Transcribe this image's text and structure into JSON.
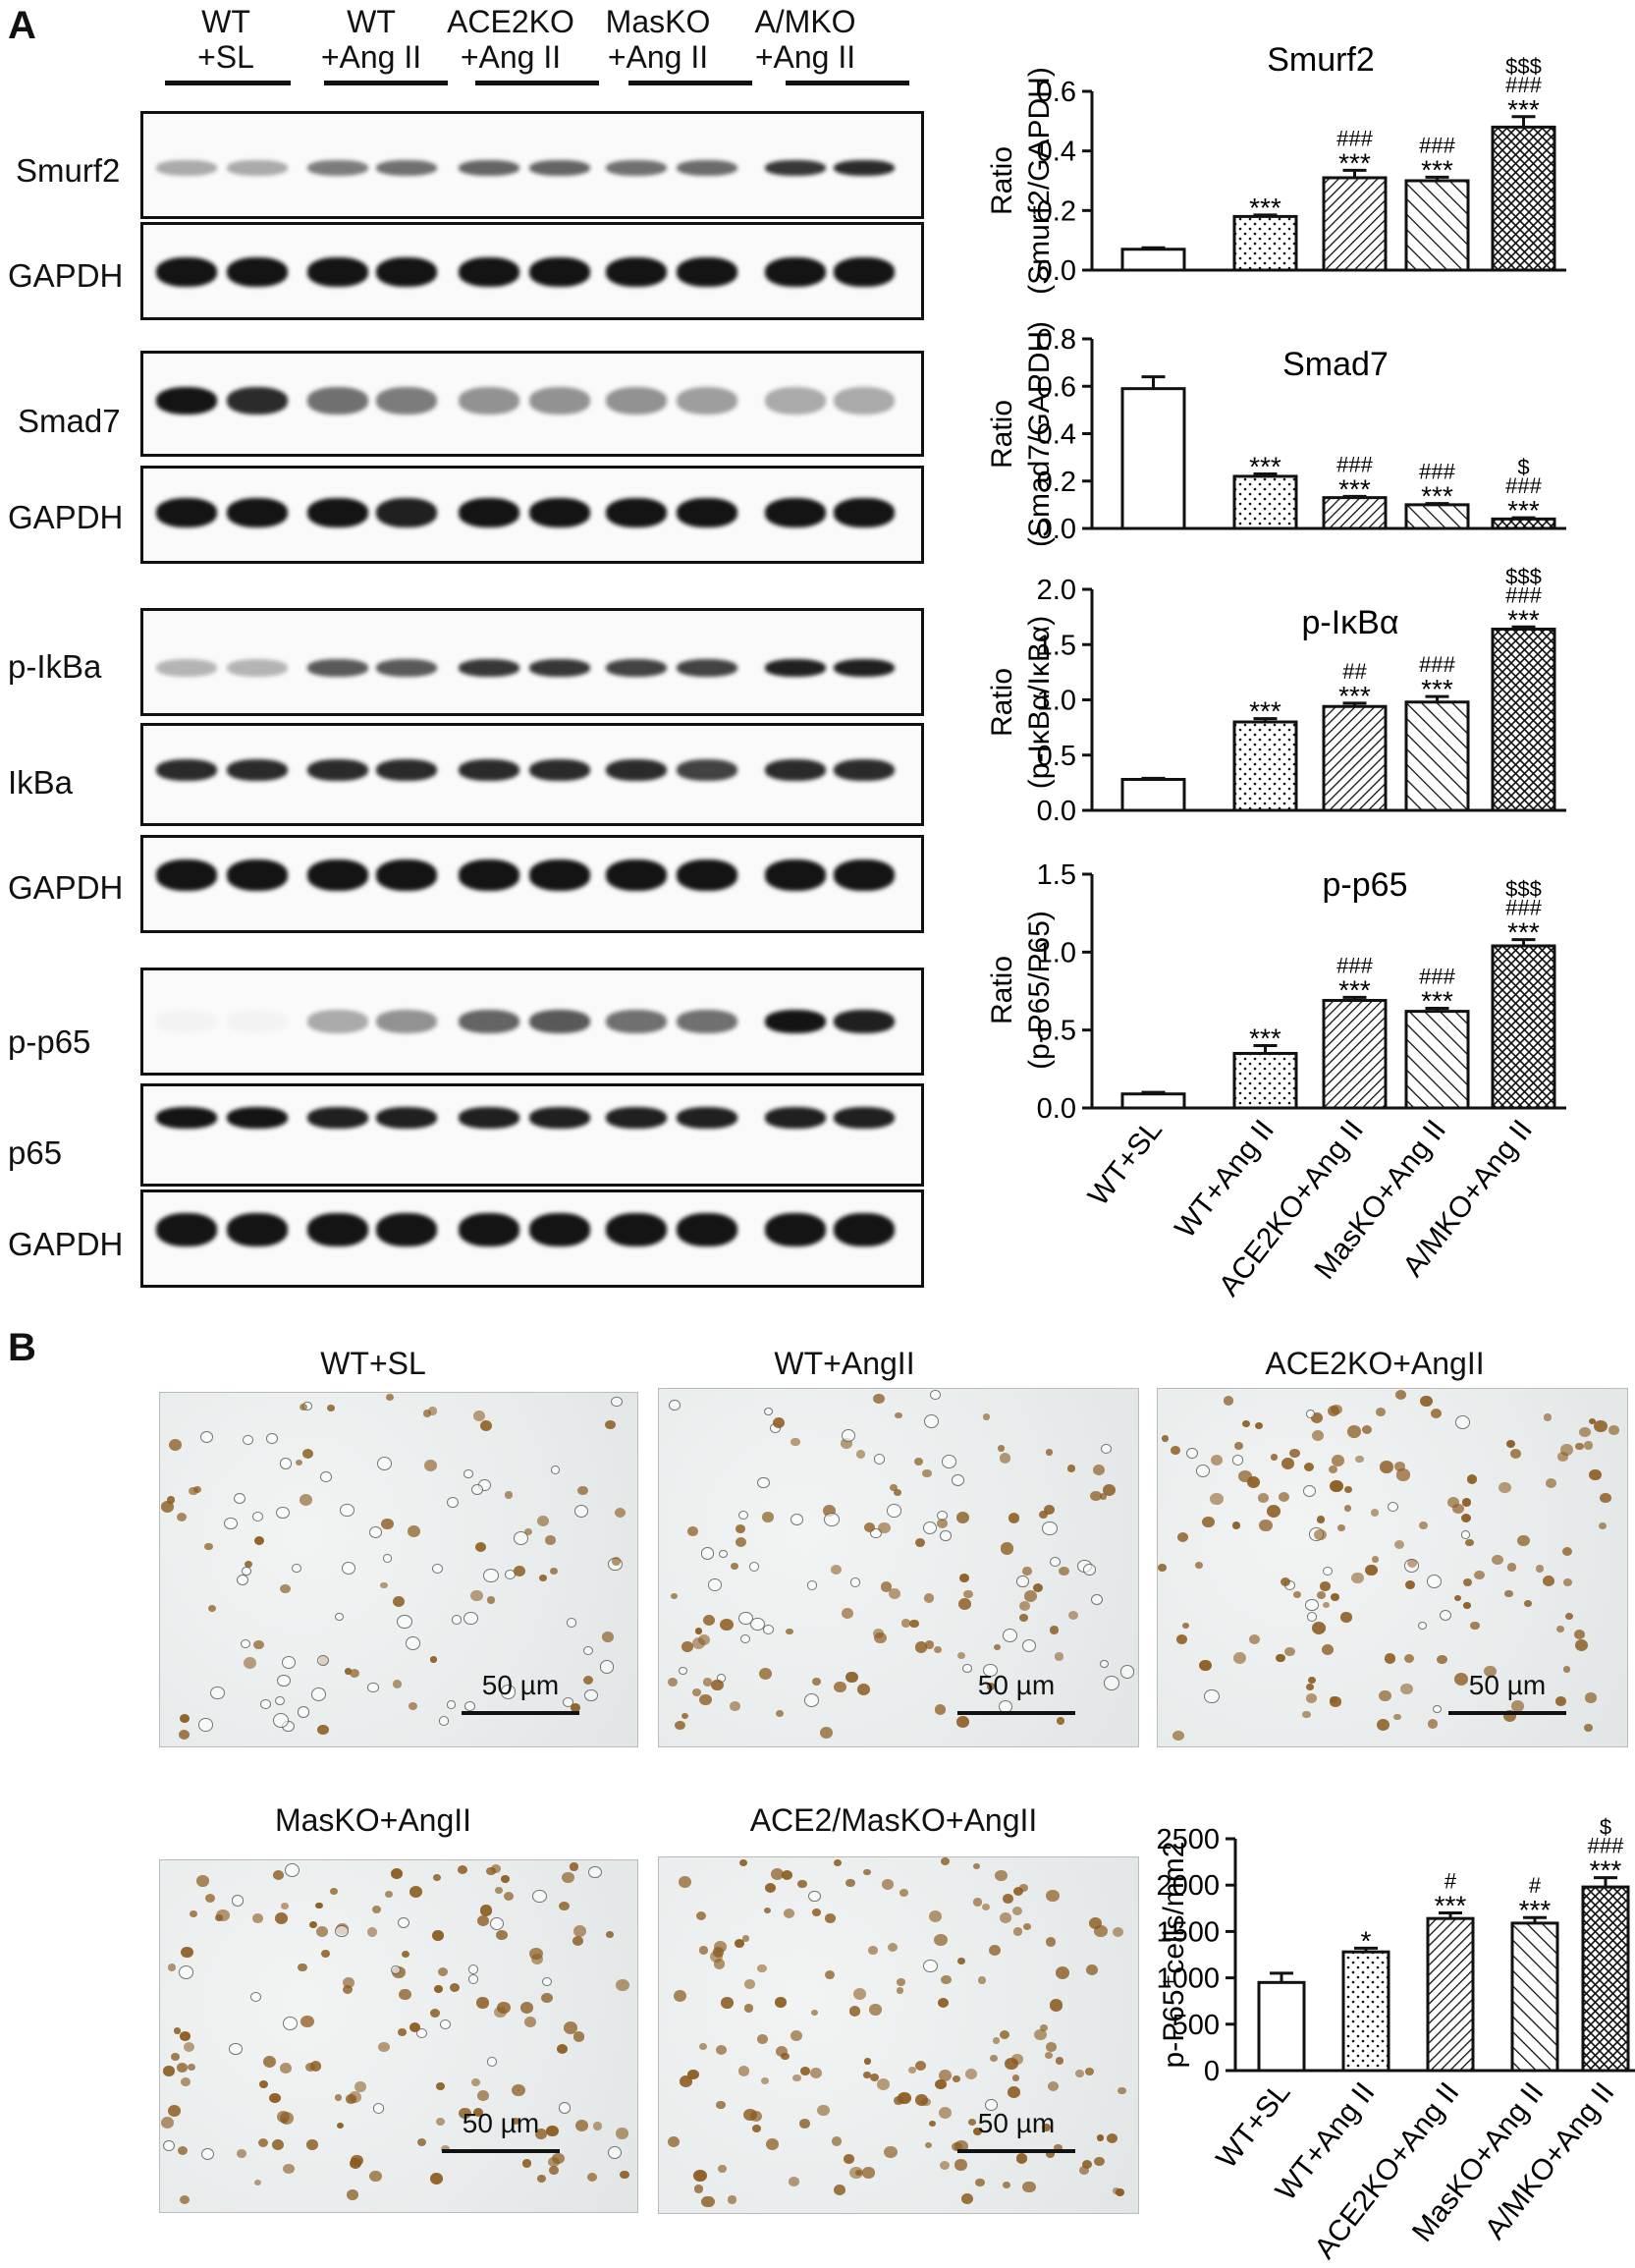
{
  "panel_a": {
    "letter": "A",
    "lane_groups": [
      {
        "line1": "WT",
        "line2": "+SL"
      },
      {
        "line1": "WT",
        "line2": "+Ang II"
      },
      {
        "line1": "ACE2KO",
        "line2": "+Ang II"
      },
      {
        "line1": "MasKO",
        "line2": "+Ang II"
      },
      {
        "line1": "A/MKO",
        "line2": "+Ang II"
      }
    ],
    "blot_labels": [
      "Smurf2",
      "GAPDH",
      "Smad7",
      "GAPDH",
      "p-IkBa",
      "IkBa",
      "GAPDH",
      "p-p65",
      "p65",
      "GAPDH"
    ]
  },
  "panel_b": {
    "letter": "B",
    "micrographs": [
      {
        "title": "WT+SL",
        "scale": "50 µm"
      },
      {
        "title": "WT+AngII",
        "scale": "50 µm"
      },
      {
        "title": "ACE2KO+AngII",
        "scale": "50 µm"
      },
      {
        "title": "MasKO+AngII",
        "scale": "50 µm"
      },
      {
        "title": "ACE2/MasKO+AngII",
        "scale": "50 µm"
      }
    ]
  },
  "colors": {
    "ink": "#111111",
    "band": "#1a1a1a",
    "stain": "#8a5a1e"
  },
  "chart_data": [
    {
      "type": "bar",
      "title": "Smurf2",
      "ylabel_line1": "Ratio",
      "ylabel_line2": "(Smurf2/GAPDH)",
      "ylim": [
        0,
        0.6
      ],
      "yticks": [
        "0.0",
        "0.2",
        "0.4",
        "0.6"
      ],
      "categories": [
        "WT+SL",
        "WT+Ang II",
        "ACE2KO+Ang II",
        "MasKO+Ang II",
        "A/MKO+Ang II"
      ],
      "values": [
        0.07,
        0.18,
        0.31,
        0.3,
        0.48
      ],
      "errors": [
        0.005,
        0.005,
        0.025,
        0.012,
        0.035
      ],
      "annotations": [
        [],
        [
          "***"
        ],
        [
          "###",
          "***"
        ],
        [
          "###",
          "***"
        ],
        [
          "$$$",
          "###",
          "***"
        ]
      ]
    },
    {
      "type": "bar",
      "title": "Smad7",
      "ylabel_line1": "Ratio",
      "ylabel_line2": "(Smad7/GAPDH)",
      "ylim": [
        0,
        0.8
      ],
      "yticks": [
        "0.0",
        "0.2",
        "0.4",
        "0.6",
        "0.8"
      ],
      "categories": [
        "WT+SL",
        "WT+Ang II",
        "ACE2KO+Ang II",
        "MasKO+Ang II",
        "A/MKO+Ang II"
      ],
      "values": [
        0.59,
        0.22,
        0.13,
        0.1,
        0.04
      ],
      "errors": [
        0.05,
        0.01,
        0.005,
        0.005,
        0.005
      ],
      "annotations": [
        [],
        [
          "***"
        ],
        [
          "###",
          "***"
        ],
        [
          "###",
          "***"
        ],
        [
          "$",
          "###",
          "***"
        ]
      ]
    },
    {
      "type": "bar",
      "title": "p-IκBα",
      "ylabel_line1": "Ratio",
      "ylabel_line2": "(p-IκBα/IκBα)",
      "ylim": [
        0,
        2.0
      ],
      "yticks": [
        "0.0",
        "0.5",
        "1.0",
        "1.5",
        "2.0"
      ],
      "categories": [
        "WT+SL",
        "WT+Ang II",
        "ACE2KO+Ang II",
        "MasKO+Ang II",
        "A/MKO+Ang II"
      ],
      "values": [
        0.28,
        0.8,
        0.94,
        0.98,
        1.64
      ],
      "errors": [
        0.01,
        0.03,
        0.03,
        0.05,
        0.02
      ],
      "annotations": [
        [],
        [
          "***"
        ],
        [
          "##",
          "***"
        ],
        [
          "###",
          "***"
        ],
        [
          "$$$",
          "###",
          "***"
        ]
      ]
    },
    {
      "type": "bar",
      "title": "p-p65",
      "ylabel_line1": "Ratio",
      "ylabel_line2": "(p-P65/P65)",
      "ylim": [
        0,
        1.5
      ],
      "yticks": [
        "0.0",
        "0.5",
        "1.0",
        "1.5"
      ],
      "categories": [
        "WT+SL",
        "WT+Ang II",
        "ACE2KO+Ang II",
        "MasKO+Ang II",
        "A/MKO+Ang II"
      ],
      "values": [
        0.09,
        0.35,
        0.69,
        0.62,
        1.04
      ],
      "errors": [
        0.01,
        0.05,
        0.02,
        0.02,
        0.04
      ],
      "annotations": [
        [],
        [
          "***"
        ],
        [
          "###",
          "***"
        ],
        [
          "###",
          "***"
        ],
        [
          "$$$",
          "###",
          "***"
        ]
      ]
    },
    {
      "type": "bar",
      "title": "",
      "ylabel_line1": "",
      "ylabel_line2": "p-P65⁺cells/mm2",
      "ylim": [
        0,
        2500
      ],
      "yticks": [
        "0",
        "500",
        "1000",
        "1500",
        "2000",
        "2500"
      ],
      "categories": [
        "WT+SL",
        "WT+Ang II",
        "ACE2KO+Ang II",
        "MasKO+Ang II",
        "A/MKO+Ang II"
      ],
      "values": [
        950,
        1280,
        1640,
        1590,
        1980
      ],
      "errors": [
        100,
        40,
        60,
        60,
        100
      ],
      "annotations": [
        [],
        [
          "*"
        ],
        [
          "#",
          "***"
        ],
        [
          "#",
          "***"
        ],
        [
          "$",
          "###",
          "***"
        ]
      ]
    }
  ]
}
